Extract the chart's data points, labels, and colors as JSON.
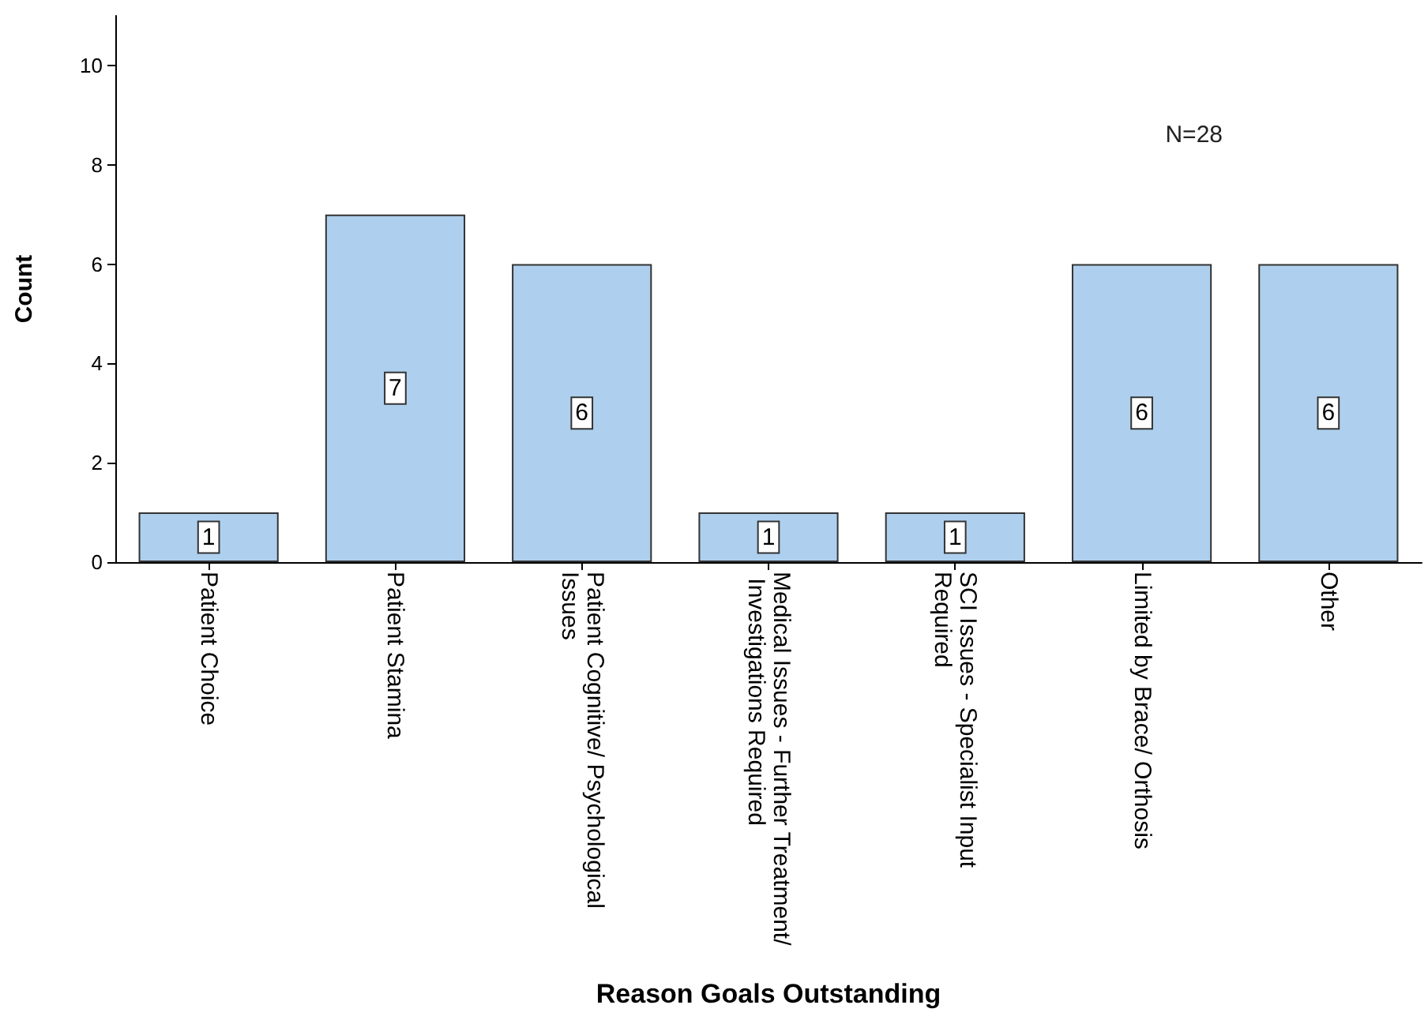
{
  "chart_data": {
    "type": "bar",
    "xlabel": "Reason Goals Outstanding",
    "ylabel": "Count",
    "categories": [
      "Patient Choice",
      "Patient Stamina",
      "Patient Cognitive/ Psychological Issues",
      "Medical Issues - Further Treatment/ Investigations Required",
      "SCI Issues - Specialist Input Required",
      "Limited by Brace/ Orthosis",
      "Other"
    ],
    "values": [
      1,
      7,
      6,
      1,
      1,
      6,
      6
    ],
    "color": "#aed0ee",
    "ylim": [
      0,
      11
    ],
    "yticks": [
      0,
      2,
      4,
      6,
      8,
      10
    ],
    "grid": false,
    "data_labels": true,
    "annotations": [
      "N=28"
    ]
  }
}
